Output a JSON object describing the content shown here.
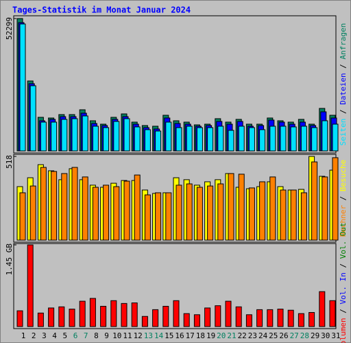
{
  "chart_data": [
    {
      "type": "bar",
      "title": "Tages-Statistik im Monat Januar 2024",
      "legend_separator": "/",
      "ylim": [
        0,
        52299
      ],
      "yticks": [
        52299
      ],
      "series": [
        {
          "name": "Anfragen",
          "color": "#008060",
          "values": [
            52299,
            27640,
            13280,
            13010,
            14360,
            14360,
            16260,
            11920,
            10570,
            13280,
            14630,
            11380,
            10030,
            9760,
            14090,
            11920,
            11380,
            10300,
            10570,
            12740,
            11380,
            12470,
            10570,
            10570,
            13010,
            11920,
            11380,
            12470,
            10570,
            16800,
            14090
          ]
        },
        {
          "name": "Dateien",
          "color": "#0000ff",
          "values": [
            50680,
            26560,
            11920,
            12470,
            13550,
            13550,
            14910,
            10840,
            10030,
            12470,
            13550,
            10570,
            9210,
            8670,
            13010,
            10840,
            10570,
            9760,
            10030,
            11650,
            10570,
            11650,
            9760,
            10030,
            12200,
            11380,
            10570,
            11380,
            10030,
            15450,
            13010
          ]
        },
        {
          "name": "Seiten",
          "color": "#00e0ff",
          "values": [
            50140,
            25750,
            11380,
            11380,
            12470,
            12740,
            13820,
            9760,
            9210,
            11650,
            12740,
            9490,
            8400,
            7860,
            11380,
            9210,
            9760,
            9210,
            9210,
            9760,
            8130,
            9760,
            9210,
            8400,
            9760,
            9760,
            9490,
            9760,
            9210,
            11920,
            10570
          ]
        }
      ]
    },
    {
      "type": "bar",
      "ylim": [
        0,
        518
      ],
      "yticks": [
        518
      ],
      "series": [
        {
          "name": "Besuche",
          "color": "#ffff00",
          "values": [
            331,
            386,
            467,
            429,
            374,
            442,
            374,
            340,
            327,
            352,
            369,
            369,
            310,
            289,
            293,
            386,
            374,
            340,
            361,
            374,
            412,
            327,
            318,
            331,
            361,
            331,
            310,
            314,
            518,
            395,
            433
          ]
        },
        {
          "name": "Rechner",
          "color": "#ff8000",
          "values": [
            293,
            335,
            450,
            425,
            412,
            450,
            391,
            327,
            340,
            331,
            365,
            403,
            280,
            293,
            293,
            340,
            348,
            327,
            335,
            348,
            412,
            408,
            323,
            361,
            391,
            310,
            310,
            293,
            484,
            391,
            510
          ]
        }
      ]
    },
    {
      "type": "bar",
      "ylim": [
        0,
        1.45
      ],
      "yticks": [
        {
          "value": 1.45,
          "label": "1.45 GB"
        }
      ],
      "categories": [
        "1",
        "2",
        "3",
        "4",
        "5",
        "6",
        "7",
        "8",
        "9",
        "10",
        "11",
        "12",
        "13",
        "14",
        "15",
        "16",
        "17",
        "18",
        "19",
        "20",
        "21",
        "22",
        "23",
        "24",
        "25",
        "26",
        "27",
        "28",
        "29",
        "30",
        "31"
      ],
      "category_colors": [
        "#000000",
        "#000000",
        "#000000",
        "#000000",
        "#000000",
        "#008060",
        "#008060",
        "#000000",
        "#000000",
        "#000000",
        "#000000",
        "#000000",
        "#008060",
        "#008060",
        "#000000",
        "#000000",
        "#000000",
        "#000000",
        "#000000",
        "#008060",
        "#008060",
        "#000000",
        "#000000",
        "#000000",
        "#000000",
        "#000000",
        "#008060",
        "#008060",
        "#000000",
        "#000000",
        "#000000"
      ],
      "series": [
        {
          "name": "Volumen",
          "color": "#ff0000",
          "values": [
            0.28,
            1.45,
            0.24,
            0.33,
            0.35,
            0.31,
            0.45,
            0.5,
            0.36,
            0.46,
            0.41,
            0.42,
            0.18,
            0.3,
            0.36,
            0.46,
            0.23,
            0.21,
            0.33,
            0.37,
            0.45,
            0.35,
            0.21,
            0.3,
            0.3,
            0.31,
            0.29,
            0.23,
            0.25,
            0.62,
            0.46
          ]
        }
      ],
      "extra_legend": [
        {
          "name": "Vol. In",
          "color": "#0000ff"
        },
        {
          "name": "Vol. Out",
          "color": "#008000"
        }
      ]
    }
  ]
}
